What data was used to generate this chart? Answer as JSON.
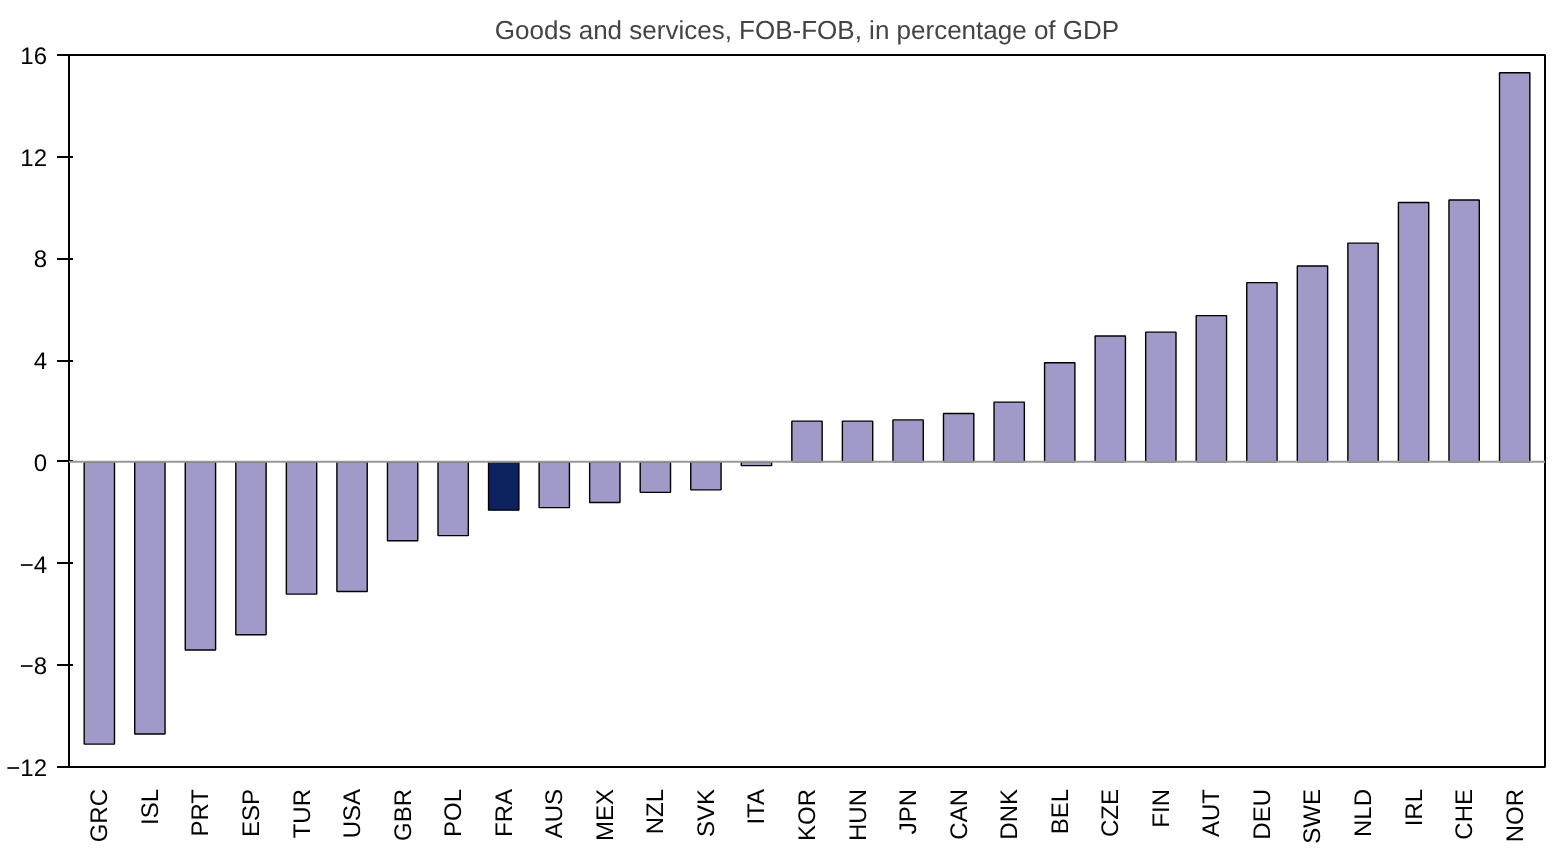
{
  "chart_data": {
    "type": "bar",
    "title": "Goods and services, FOB-FOB, in percentage of GDP",
    "categories": [
      "GRC",
      "ISL",
      "PRT",
      "ESP",
      "TUR",
      "USA",
      "GBR",
      "POL",
      "FRA",
      "AUS",
      "MEX",
      "NZL",
      "SVK",
      "ITA",
      "KOR",
      "HUN",
      "JPN",
      "CAN",
      "DNK",
      "BEL",
      "CZE",
      "FIN",
      "AUT",
      "DEU",
      "SWE",
      "NLD",
      "IRL",
      "CHE",
      "NOR"
    ],
    "values": [
      -11.1,
      -10.7,
      -7.4,
      -6.8,
      -5.2,
      -5.1,
      -3.1,
      -2.9,
      -1.9,
      -1.8,
      -1.6,
      -1.2,
      -1.1,
      -0.15,
      1.6,
      1.6,
      1.65,
      1.9,
      2.35,
      3.9,
      4.95,
      5.1,
      5.75,
      7.05,
      7.7,
      8.6,
      10.2,
      10.3,
      15.3
    ],
    "colors": [
      "#9f9ac8",
      "#9f9ac8",
      "#9f9ac8",
      "#9f9ac8",
      "#9f9ac8",
      "#9f9ac8",
      "#9f9ac8",
      "#9f9ac8",
      "#0c2160",
      "#9f9ac8",
      "#9f9ac8",
      "#9f9ac8",
      "#9f9ac8",
      "#9f9ac8",
      "#9f9ac8",
      "#9f9ac8",
      "#9f9ac8",
      "#9f9ac8",
      "#9f9ac8",
      "#9f9ac8",
      "#9f9ac8",
      "#9f9ac8",
      "#9f9ac8",
      "#9f9ac8",
      "#9f9ac8",
      "#9f9ac8",
      "#9f9ac8",
      "#9f9ac8",
      "#9f9ac8"
    ],
    "ylim": [
      -12,
      16
    ],
    "yticks": [
      -12,
      -8,
      -4,
      0,
      4,
      8,
      12,
      16
    ],
    "ref_lines": [
      {
        "axis": "y",
        "value": 0,
        "color": "#999999"
      }
    ],
    "grid": false
  }
}
